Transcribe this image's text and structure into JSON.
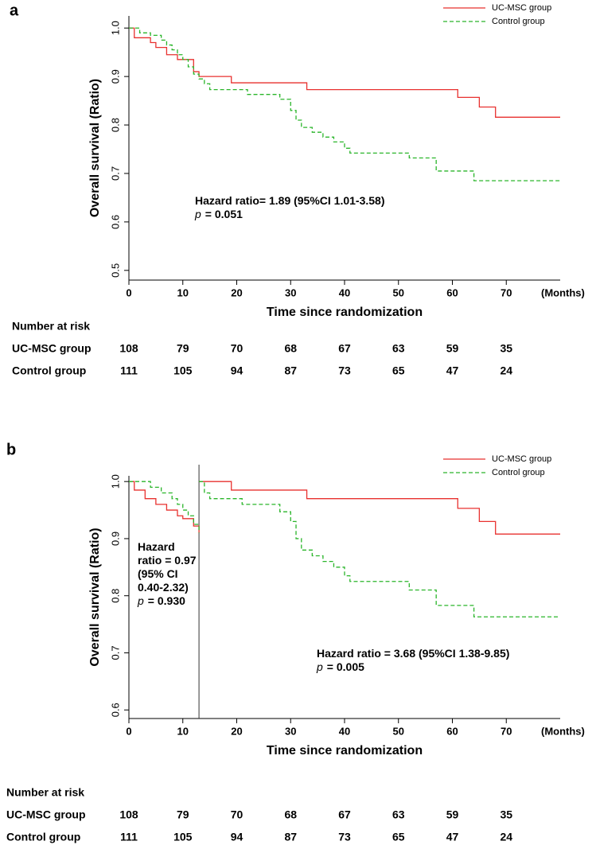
{
  "chart_data": [
    {
      "type": "step",
      "panel_label": "a",
      "x_label": "Time since randomization",
      "x_unit": "(Months)",
      "y_label": "Overall survival (Ratio)",
      "xlim": [
        0,
        80
      ],
      "xticks": [
        0,
        10,
        20,
        30,
        40,
        50,
        60,
        70
      ],
      "ylim": [
        0.48,
        1.025
      ],
      "yticks": [
        0.5,
        0.6,
        0.7,
        0.8,
        0.9,
        {
          "value": 1,
          "label": "1.0"
        }
      ],
      "legend": "top-right",
      "series": [
        {
          "name": "UC-MSC group",
          "color": "#e8312f",
          "dashed": false,
          "x": [
            0,
            1,
            4,
            5,
            7,
            9,
            12,
            13,
            19,
            33,
            61,
            65,
            68,
            80
          ],
          "values": [
            1,
            0.98,
            0.97,
            0.96,
            0.945,
            0.935,
            0.91,
            0.9,
            0.887,
            0.873,
            0.857,
            0.837,
            0.816,
            0.816
          ]
        },
        {
          "name": "Control group",
          "color": "#2ab52a",
          "dashed": true,
          "x": [
            0,
            2,
            4,
            6,
            7,
            8,
            9,
            10,
            11,
            12,
            13,
            14,
            15,
            22,
            28,
            30,
            31,
            32,
            34,
            36,
            38,
            40,
            41,
            52,
            57,
            64,
            80
          ],
          "values": [
            1,
            0.99,
            0.985,
            0.975,
            0.965,
            0.955,
            0.945,
            0.935,
            0.92,
            0.905,
            0.895,
            0.885,
            0.873,
            0.863,
            0.853,
            0.83,
            0.81,
            0.795,
            0.785,
            0.775,
            0.765,
            0.752,
            0.742,
            0.732,
            0.705,
            0.685,
            0.685
          ]
        }
      ],
      "annotations": [
        {
          "lines": [
            {
              "text": "Hazard ratio= 1.89 (95%CI 1.01-3.58)"
            },
            {
              "italic": "p",
              "text": "= 0.051"
            }
          ]
        }
      ],
      "risk_table": {
        "title": "Number at risk",
        "rows": [
          {
            "name": "UC-MSC group",
            "values": [
              108,
              79,
              70,
              68,
              67,
              63,
              59,
              35
            ]
          },
          {
            "name": "Control group",
            "values": [
              111,
              105,
              94,
              87,
              73,
              65,
              47,
              24
            ]
          }
        ]
      }
    },
    {
      "type": "step",
      "panel_label": "b",
      "x_label": "Time since randomization",
      "x_unit": "(Months)",
      "y_label": "Overall survival (Ratio)",
      "xlim": [
        0,
        80
      ],
      "xticks": [
        0,
        10,
        20,
        30,
        40,
        50,
        60,
        70
      ],
      "ylim": [
        0.585,
        1.01
      ],
      "yticks": [
        0.6,
        0.7,
        0.8,
        0.9,
        {
          "value": 1,
          "label": "1.0"
        }
      ],
      "vline": 13,
      "legend": "top-right",
      "series": [
        {
          "name": "UC-MSC group",
          "color": "#e8312f",
          "dashed": false,
          "x": [
            0,
            1,
            3,
            5,
            7,
            9,
            10,
            12,
            13,
            null,
            13,
            19,
            33,
            61,
            65,
            68,
            80
          ],
          "values": [
            1,
            0.985,
            0.97,
            0.96,
            0.95,
            0.94,
            0.935,
            0.922,
            0.91,
            null,
            1,
            0.985,
            0.97,
            0.953,
            0.93,
            0.908,
            0.908
          ]
        },
        {
          "name": "Control group",
          "color": "#2ab52a",
          "dashed": true,
          "x": [
            0,
            4,
            6,
            8,
            9,
            10,
            11,
            12,
            13,
            null,
            13,
            14,
            15,
            21,
            28,
            30,
            31,
            32,
            34,
            36,
            38,
            40,
            41,
            52,
            57,
            64,
            80
          ],
          "values": [
            1,
            0.99,
            0.98,
            0.97,
            0.96,
            0.95,
            0.94,
            0.925,
            0.91,
            null,
            1,
            0.98,
            0.97,
            0.96,
            0.947,
            0.93,
            0.9,
            0.88,
            0.87,
            0.86,
            0.85,
            0.835,
            0.825,
            0.81,
            0.783,
            0.763,
            0.763
          ]
        }
      ],
      "annotations": [
        {
          "lines": [
            {
              "text": "Hazard"
            },
            {
              "text": "ratio = 0.97"
            },
            {
              "text": "(95% CI"
            },
            {
              "text": "0.40-2.32)"
            },
            {
              "italic": "p",
              "text": "= 0.930"
            }
          ]
        },
        {
          "lines": [
            {
              "text": "Hazard ratio = 3.68 (95%CI 1.38-9.85)"
            },
            {
              "italic": "p",
              "text": "= 0.005"
            }
          ]
        }
      ],
      "risk_table": {
        "title": "Number at risk",
        "rows": [
          {
            "name": "UC-MSC group",
            "values": [
              108,
              79,
              70,
              68,
              67,
              63,
              59,
              35
            ]
          },
          {
            "name": "Control group",
            "values": [
              111,
              105,
              94,
              87,
              73,
              65,
              47,
              24
            ]
          }
        ]
      }
    }
  ]
}
